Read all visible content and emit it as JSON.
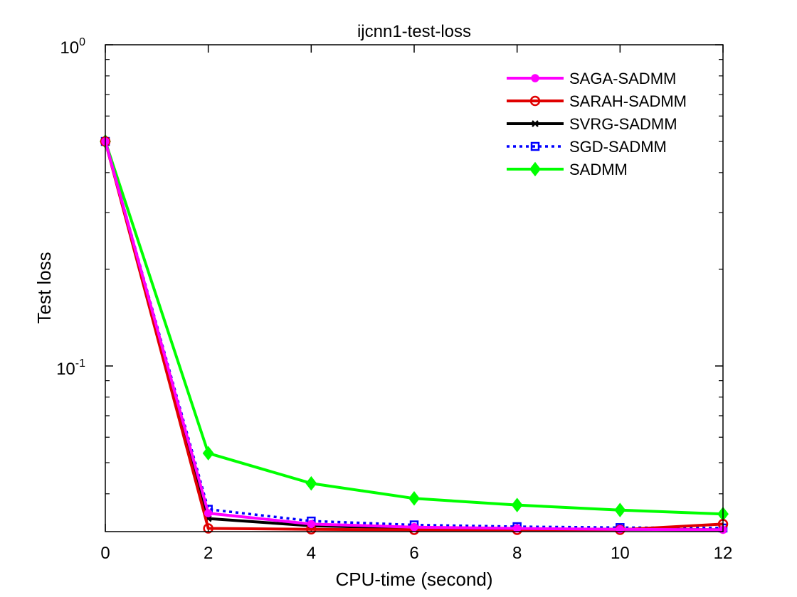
{
  "chart_data": {
    "type": "line",
    "title": "ijcnn1-test-loss",
    "xlabel": "CPU-time (second)",
    "ylabel": "Test loss",
    "xlim": [
      0,
      12
    ],
    "ylim": [
      0.0305,
      1
    ],
    "yscale": "log",
    "xticks": [
      0,
      2,
      4,
      6,
      8,
      10,
      12
    ],
    "xtick_labels": [
      "0",
      "2",
      "4",
      "6",
      "8",
      "10",
      "12"
    ],
    "yticks": [
      {
        "value": 1,
        "base": "10",
        "exp": "0"
      },
      {
        "value": 0.1,
        "base": "10",
        "exp": "-1"
      }
    ],
    "grid": false,
    "legend_position": "top-right",
    "x": [
      0,
      2,
      4,
      6,
      8,
      10,
      12
    ],
    "series": [
      {
        "name": "SAGA-SADMM",
        "color": "#ff00ff",
        "marker": "circle-filled",
        "line": "solid",
        "values": [
          0.5,
          0.0348,
          0.0322,
          0.0315,
          0.0312,
          0.031,
          0.0309
        ]
      },
      {
        "name": "SARAH-SADMM",
        "color": "#e00000",
        "marker": "circle-open",
        "line": "solid",
        "values": [
          0.5,
          0.0312,
          0.031,
          0.0309,
          0.0309,
          0.0309,
          0.0322
        ]
      },
      {
        "name": "SVRG-SADMM",
        "color": "#000000",
        "marker": "x",
        "line": "solid",
        "values": [
          0.5,
          0.0335,
          0.0318,
          0.0313,
          0.0311,
          0.031,
          0.0309
        ]
      },
      {
        "name": "SGD-SADMM",
        "color": "#0000ff",
        "marker": "square-open",
        "line": "dotted",
        "values": [
          0.5,
          0.0358,
          0.0329,
          0.032,
          0.0316,
          0.0314,
          0.0313
        ]
      },
      {
        "name": "SADMM",
        "color": "#00ff00",
        "marker": "diamond-filled",
        "line": "solid",
        "values": [
          0.5,
          0.0535,
          0.0431,
          0.0387,
          0.0369,
          0.0356,
          0.0346
        ]
      }
    ]
  }
}
